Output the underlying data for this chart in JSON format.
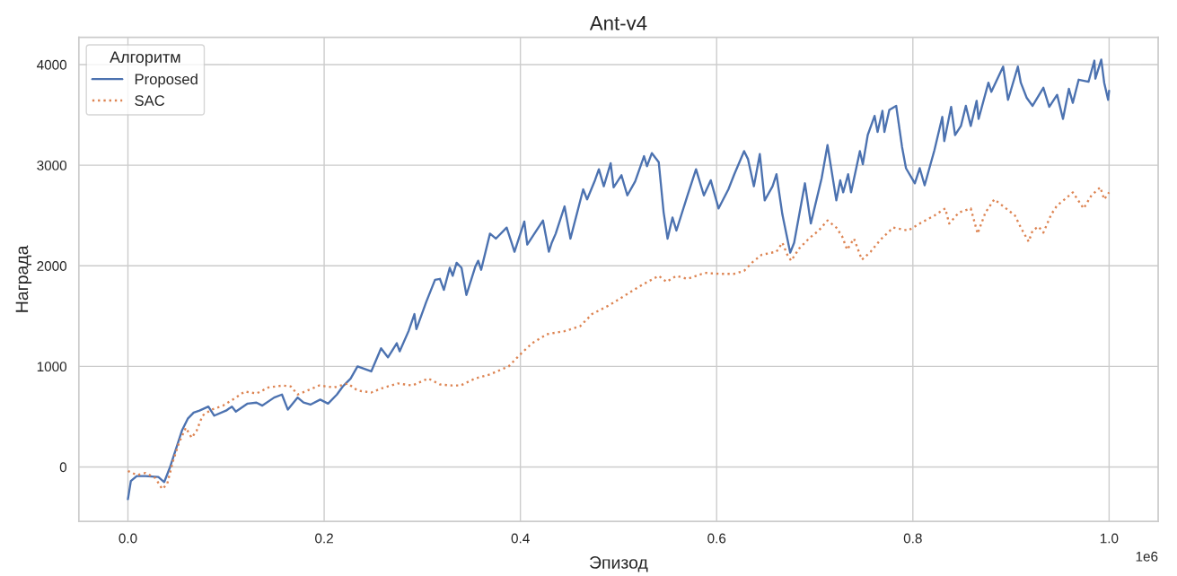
{
  "chart_data": {
    "type": "line",
    "title": "Ant-v4",
    "xlabel": "Эпизод",
    "ylabel": "Награда",
    "legend_title": "Алгоритм",
    "annotations": [
      "1e6"
    ],
    "xlim": [
      -0.05,
      1.05
    ],
    "ylim": [
      -540,
      4270
    ],
    "xticks": [
      {
        "value": 0,
        "label": "0.0"
      },
      {
        "value": 0.2,
        "label": "0.2"
      },
      {
        "value": 0.4,
        "label": "0.4"
      },
      {
        "value": 0.6,
        "label": "0.6"
      },
      {
        "value": 0.8,
        "label": "0.8"
      },
      {
        "value": 1,
        "label": "1.0"
      }
    ],
    "yticks": [
      0,
      1000,
      2000,
      3000,
      4000
    ],
    "grid": true,
    "legend": "top left",
    "series": [
      {
        "name": "Proposed",
        "color": "#4c72b0",
        "line_style": "solid",
        "x": [
          0,
          0.003,
          0.009,
          0.018,
          0.031,
          0.037,
          0.043,
          0.049,
          0.055,
          0.061,
          0.067,
          0.073,
          0.082,
          0.088,
          0.1,
          0.106,
          0.11,
          0.122,
          0.131,
          0.137,
          0.149,
          0.157,
          0.163,
          0.173,
          0.179,
          0.186,
          0.196,
          0.204,
          0.213,
          0.219,
          0.227,
          0.234,
          0.248,
          0.258,
          0.265,
          0.274,
          0.277,
          0.286,
          0.292,
          0.294,
          0.304,
          0.313,
          0.318,
          0.322,
          0.328,
          0.331,
          0.335,
          0.34,
          0.345,
          0.354,
          0.357,
          0.36,
          0.369,
          0.375,
          0.386,
          0.391,
          0.394,
          0.404,
          0.407,
          0.423,
          0.429,
          0.432,
          0.436,
          0.445,
          0.451,
          0.464,
          0.468,
          0.476,
          0.48,
          0.485,
          0.492,
          0.495,
          0.503,
          0.509,
          0.517,
          0.526,
          0.529,
          0.534,
          0.541,
          0.546,
          0.55,
          0.555,
          0.559,
          0.57,
          0.579,
          0.587,
          0.594,
          0.602,
          0.612,
          0.618,
          0.628,
          0.632,
          0.638,
          0.644,
          0.649,
          0.657,
          0.661,
          0.667,
          0.675,
          0.679,
          0.69,
          0.696,
          0.707,
          0.713,
          0.722,
          0.726,
          0.729,
          0.734,
          0.737,
          0.746,
          0.749,
          0.754,
          0.761,
          0.764,
          0.769,
          0.771,
          0.776,
          0.783,
          0.789,
          0.793,
          0.802,
          0.807,
          0.812,
          0.822,
          0.83,
          0.832,
          0.839,
          0.843,
          0.849,
          0.854,
          0.859,
          0.865,
          0.867,
          0.877,
          0.88,
          0.892,
          0.897,
          0.907,
          0.91,
          0.916,
          0.922,
          0.933,
          0.939,
          0.947,
          0.953,
          0.959,
          0.963,
          0.969,
          0.979,
          0.985,
          0.986,
          0.992,
          0.995,
          0.999,
          1
        ],
        "values": [
          -320,
          -140,
          -90,
          -90,
          -100,
          -150,
          0,
          180,
          360,
          480,
          540,
          560,
          600,
          510,
          560,
          600,
          550,
          630,
          640,
          610,
          690,
          720,
          570,
          690,
          640,
          620,
          670,
          630,
          720,
          800,
          880,
          1000,
          950,
          1180,
          1090,
          1230,
          1150,
          1350,
          1520,
          1370,
          1640,
          1860,
          1870,
          1760,
          1980,
          1900,
          2030,
          1980,
          1710,
          1990,
          2050,
          1960,
          2320,
          2270,
          2380,
          2230,
          2140,
          2440,
          2210,
          2450,
          2140,
          2230,
          2320,
          2590,
          2270,
          2760,
          2660,
          2850,
          2960,
          2790,
          3020,
          2780,
          2900,
          2700,
          2840,
          3090,
          2990,
          3120,
          3030,
          2530,
          2270,
          2480,
          2350,
          2690,
          2960,
          2700,
          2850,
          2570,
          2760,
          2910,
          3140,
          3060,
          2790,
          3110,
          2650,
          2790,
          2910,
          2510,
          2130,
          2230,
          2820,
          2420,
          2870,
          3200,
          2650,
          2850,
          2730,
          2910,
          2730,
          3140,
          3010,
          3300,
          3490,
          3330,
          3540,
          3330,
          3550,
          3590,
          3180,
          2970,
          2820,
          2970,
          2800,
          3150,
          3480,
          3240,
          3580,
          3300,
          3390,
          3590,
          3390,
          3640,
          3460,
          3820,
          3730,
          3980,
          3650,
          3980,
          3820,
          3670,
          3590,
          3770,
          3580,
          3700,
          3460,
          3760,
          3620,
          3850,
          3830,
          4040,
          3860,
          4050,
          3820,
          3650,
          3740
        ]
      },
      {
        "name": "SAC",
        "color": "#dd8452",
        "line_style": "dotted",
        "x": [
          0,
          0.009,
          0.018,
          0.028,
          0.035,
          0.04,
          0.046,
          0.052,
          0.059,
          0.065,
          0.07,
          0.076,
          0.085,
          0.097,
          0.11,
          0.119,
          0.131,
          0.143,
          0.158,
          0.166,
          0.173,
          0.183,
          0.195,
          0.21,
          0.224,
          0.234,
          0.248,
          0.258,
          0.275,
          0.29,
          0.306,
          0.318,
          0.33,
          0.339,
          0.354,
          0.369,
          0.388,
          0.401,
          0.412,
          0.427,
          0.445,
          0.461,
          0.473,
          0.491,
          0.509,
          0.524,
          0.541,
          0.549,
          0.559,
          0.57,
          0.588,
          0.602,
          0.618,
          0.628,
          0.637,
          0.646,
          0.661,
          0.667,
          0.672,
          0.676,
          0.684,
          0.694,
          0.704,
          0.713,
          0.722,
          0.728,
          0.733,
          0.74,
          0.748,
          0.757,
          0.767,
          0.78,
          0.795,
          0.807,
          0.822,
          0.833,
          0.837,
          0.847,
          0.859,
          0.866,
          0.874,
          0.883,
          0.895,
          0.904,
          0.91,
          0.918,
          0.922,
          0.928,
          0.933,
          0.941,
          0.947,
          0.956,
          0.963,
          0.974,
          0.982,
          0.991,
          0.995,
          1
        ],
        "values": [
          -40,
          -80,
          -60,
          -110,
          -220,
          -170,
          60,
          240,
          390,
          290,
          360,
          510,
          570,
          610,
          690,
          750,
          730,
          790,
          810,
          800,
          720,
          760,
          810,
          790,
          830,
          760,
          740,
          780,
          830,
          810,
          880,
          820,
          810,
          810,
          880,
          920,
          1000,
          1130,
          1230,
          1320,
          1350,
          1400,
          1520,
          1610,
          1720,
          1810,
          1900,
          1840,
          1900,
          1870,
          1930,
          1920,
          1920,
          1950,
          2040,
          2110,
          2140,
          2230,
          2110,
          2050,
          2170,
          2270,
          2350,
          2450,
          2380,
          2290,
          2160,
          2270,
          2060,
          2140,
          2260,
          2380,
          2350,
          2420,
          2500,
          2570,
          2420,
          2530,
          2570,
          2320,
          2530,
          2660,
          2570,
          2500,
          2380,
          2240,
          2350,
          2390,
          2330,
          2510,
          2600,
          2670,
          2730,
          2570,
          2700,
          2780,
          2660,
          2730
        ]
      }
    ]
  }
}
